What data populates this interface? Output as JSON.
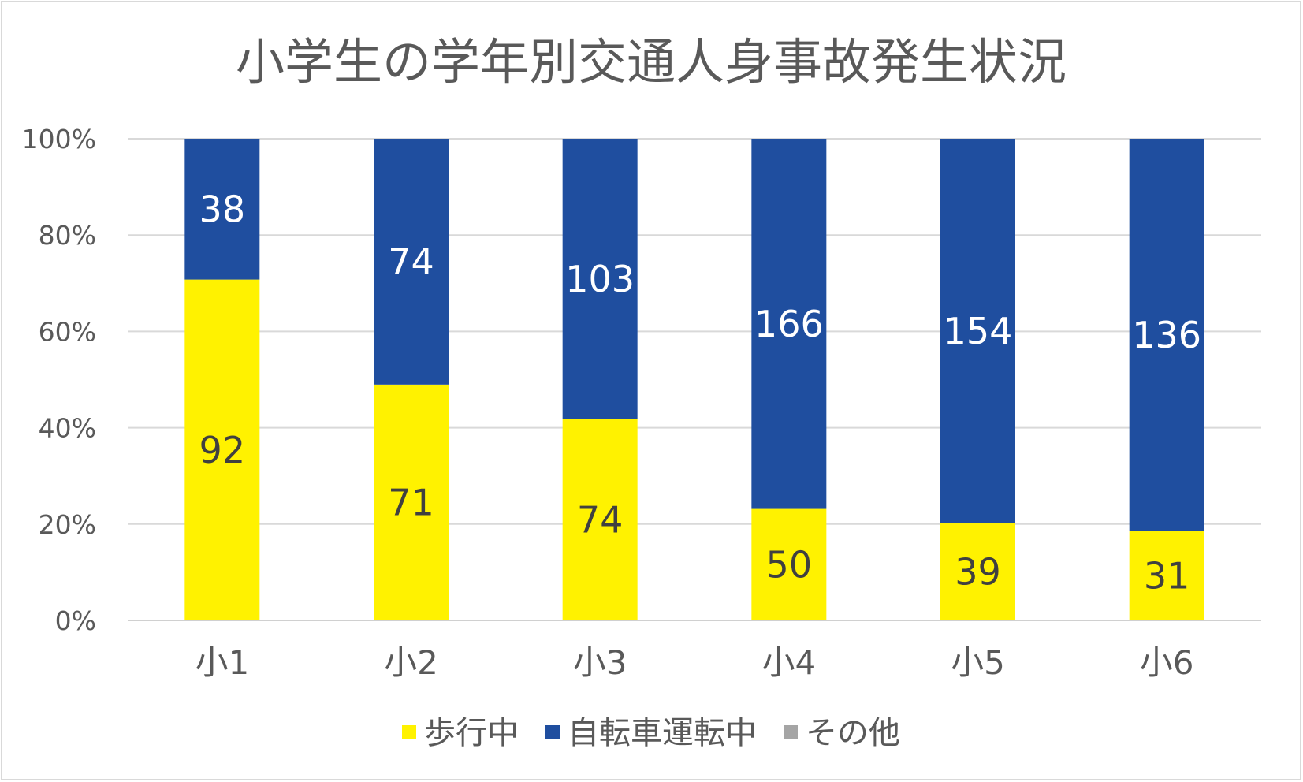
{
  "chart_data": {
    "type": "bar",
    "stacked": "percent",
    "title": "小学生の学年別交通人身事故発生状況",
    "xlabel": "",
    "ylabel": "",
    "categories": [
      "小1",
      "小2",
      "小3",
      "小4",
      "小5",
      "小6"
    ],
    "yticks": [
      "0%",
      "20%",
      "40%",
      "60%",
      "80%",
      "100%"
    ],
    "ylim": [
      0,
      100
    ],
    "grid": true,
    "legend_position": "bottom",
    "series": [
      {
        "name": "歩行中",
        "values": [
          92,
          71,
          74,
          50,
          39,
          31
        ],
        "color": "#FFF200",
        "label_color": "#404040"
      },
      {
        "name": "自転車運転中",
        "values": [
          38,
          74,
          103,
          166,
          154,
          136
        ],
        "color": "#1F4E9F",
        "label_color": "#FFFFFF"
      },
      {
        "name": "その他",
        "values": [
          0,
          0,
          0,
          0,
          0,
          0
        ],
        "color": "#A5A5A5",
        "label_color": "#404040"
      }
    ]
  }
}
